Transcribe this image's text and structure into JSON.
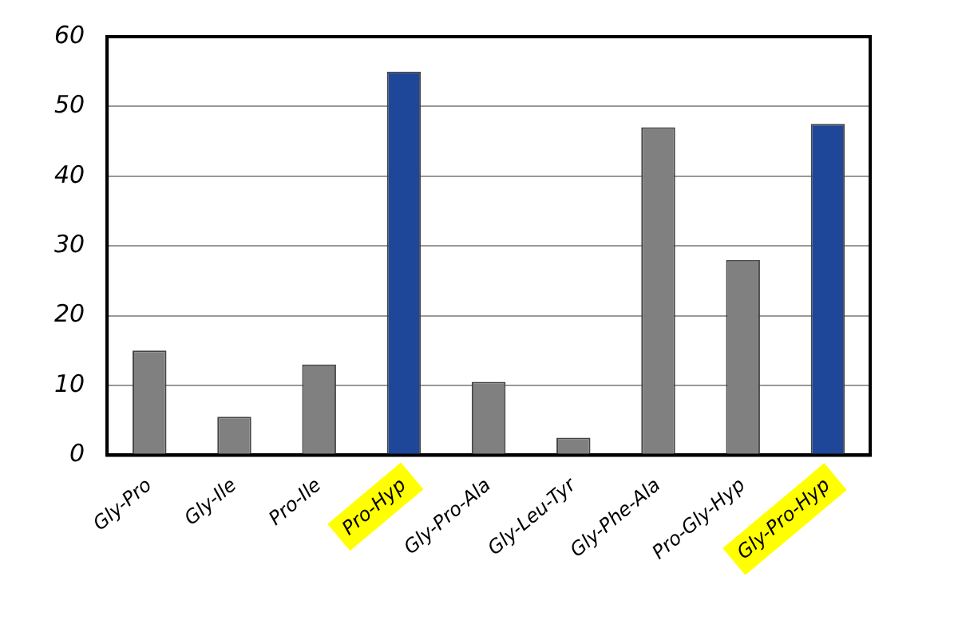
{
  "chart_data": {
    "type": "bar",
    "categories": [
      "Gly-Pro",
      "Gly-Ile",
      "Pro-Ile",
      "Pro-Hyp",
      "Gly-Pro-Ala",
      "Gly-Leu-Tyr",
      "Gly-Phe-Ala",
      "Pro-Gly-Hyp",
      "Gly-Pro-Hyp"
    ],
    "values": [
      15,
      5.5,
      13,
      55,
      10.5,
      2.5,
      47,
      28,
      47.5
    ],
    "colors": [
      "#808080",
      "#808080",
      "#808080",
      "#1f4799",
      "#808080",
      "#808080",
      "#808080",
      "#808080",
      "#1f4799"
    ],
    "ylim": [
      0,
      60
    ],
    "yticks": [
      0,
      10,
      20,
      30,
      40,
      50,
      60
    ],
    "grid": "y",
    "legend": false
  }
}
